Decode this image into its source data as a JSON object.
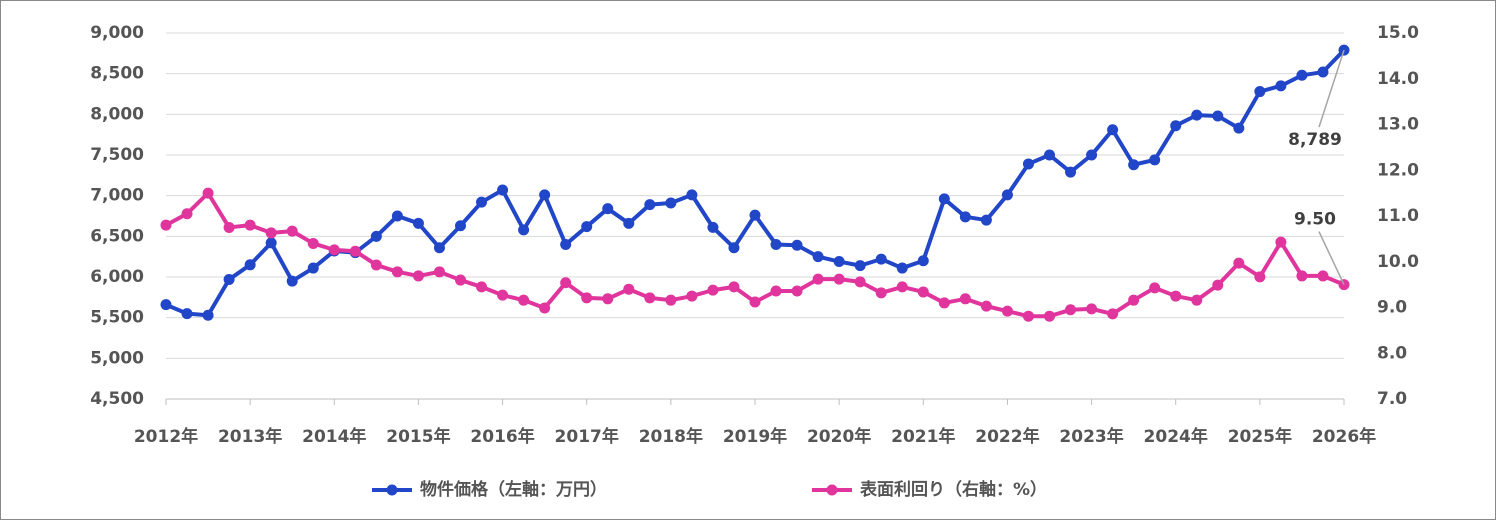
{
  "chart_data": {
    "type": "line",
    "x": [
      2012,
      2012.25,
      2012.5,
      2012.75,
      2013,
      2013.25,
      2013.5,
      2013.75,
      2014,
      2014.25,
      2014.5,
      2014.75,
      2015,
      2015.25,
      2015.5,
      2015.75,
      2016,
      2016.25,
      2016.5,
      2016.75,
      2017,
      2017.25,
      2017.5,
      2017.75,
      2018,
      2018.25,
      2018.5,
      2018.75,
      2019,
      2019.25,
      2019.5,
      2019.75,
      2020,
      2020.25,
      2020.5,
      2020.75,
      2021,
      2021.25,
      2021.5,
      2021.75,
      2022,
      2022.25,
      2022.5,
      2022.75,
      2023,
      2023.25,
      2023.5,
      2023.75,
      2024,
      2024.25,
      2024.5,
      2024.75,
      2025,
      2025.25,
      2025.5,
      2025.75,
      2026
    ],
    "xlim": [
      2012,
      2026
    ],
    "xticks": [
      {
        "value": 2012,
        "label": "2012年"
      },
      {
        "value": 2013,
        "label": "2013年"
      },
      {
        "value": 2014,
        "label": "2014年"
      },
      {
        "value": 2015,
        "label": "2015年"
      },
      {
        "value": 2016,
        "label": "2016年"
      },
      {
        "value": 2017,
        "label": "2017年"
      },
      {
        "value": 2018,
        "label": "2018年"
      },
      {
        "value": 2019,
        "label": "2019年"
      },
      {
        "value": 2020,
        "label": "2020年"
      },
      {
        "value": 2021,
        "label": "2021年"
      },
      {
        "value": 2022,
        "label": "2022年"
      },
      {
        "value": 2023,
        "label": "2023年"
      },
      {
        "value": 2024,
        "label": "2024年"
      },
      {
        "value": 2025,
        "label": "2025年"
      },
      {
        "value": 2026,
        "label": "2026年"
      }
    ],
    "ylim": [
      4500,
      9000
    ],
    "yticks": [
      {
        "value": 4500,
        "label": "4,500"
      },
      {
        "value": 5000,
        "label": "5,000"
      },
      {
        "value": 5500,
        "label": "5,500"
      },
      {
        "value": 6000,
        "label": "6,000"
      },
      {
        "value": 6500,
        "label": "6,500"
      },
      {
        "value": 7000,
        "label": "7,000"
      },
      {
        "value": 7500,
        "label": "7,500"
      },
      {
        "value": 8000,
        "label": "8,000"
      },
      {
        "value": 8500,
        "label": "8,500"
      },
      {
        "value": 9000,
        "label": "9,000"
      }
    ],
    "y2lim": [
      7,
      15
    ],
    "y2ticks": [
      {
        "value": 7,
        "label": "7.0"
      },
      {
        "value": 8,
        "label": "8.0"
      },
      {
        "value": 9,
        "label": "9.0"
      },
      {
        "value": 10,
        "label": "10.0"
      },
      {
        "value": 11,
        "label": "11.0"
      },
      {
        "value": 12,
        "label": "12.0"
      },
      {
        "value": 13,
        "label": "13.0"
      },
      {
        "value": 14,
        "label": "14.0"
      },
      {
        "value": 15,
        "label": "15.0"
      }
    ],
    "grid": true,
    "legend": "bottom",
    "series": [
      {
        "name": "物件価格（左軸：万円）",
        "color": "#2146c7",
        "values": [
          5660,
          5550,
          5530,
          5970,
          6150,
          6420,
          5950,
          6110,
          6320,
          6300,
          6500,
          6750,
          6660,
          6360,
          6630,
          6920,
          7070,
          6580,
          7010,
          6400,
          6620,
          6840,
          6660,
          6890,
          6910,
          7010,
          6610,
          6360,
          6760,
          6400,
          6390,
          6250,
          6190,
          6140,
          6220,
          6110,
          6200,
          6960,
          6740,
          6700,
          7010,
          7390,
          7500,
          7290,
          7500,
          7810,
          7380,
          7440,
          7860,
          7990,
          7980,
          7830,
          8280,
          8350,
          8480,
          8520,
          8789
        ],
        "value_labels": [
          null,
          null,
          null,
          null,
          null,
          null,
          null,
          null,
          null,
          null,
          null,
          null,
          null,
          null,
          null,
          null,
          null,
          null,
          null,
          null,
          null,
          null,
          null,
          null,
          null,
          null,
          null,
          null,
          null,
          null,
          null,
          null,
          null,
          null,
          null,
          null,
          null,
          null,
          null,
          null,
          null,
          null,
          null,
          null,
          null,
          null,
          null,
          null,
          null,
          null,
          null,
          null,
          null,
          null,
          null,
          null,
          "8,789"
        ]
      },
      {
        "name": "表面利回り（右軸：%）",
        "color": "#e0359c",
        "axis": "y2",
        "values": [
          10.8,
          11.05,
          11.5,
          10.75,
          10.8,
          10.63,
          10.67,
          10.4,
          10.26,
          10.23,
          9.93,
          9.78,
          9.69,
          9.78,
          9.6,
          9.45,
          9.27,
          9.16,
          8.99,
          9.54,
          9.21,
          9.19,
          9.4,
          9.21,
          9.16,
          9.25,
          9.38,
          9.45,
          9.12,
          9.36,
          9.36,
          9.62,
          9.62,
          9.56,
          9.32,
          9.45,
          9.34,
          9.1,
          9.19,
          9.03,
          8.92,
          8.81,
          8.81,
          8.95,
          8.97,
          8.86,
          9.16,
          9.43,
          9.25,
          9.16,
          9.49,
          9.97,
          9.67,
          10.43,
          9.69,
          9.69,
          9.5
        ],
        "value_labels": [
          null,
          null,
          null,
          null,
          null,
          null,
          null,
          null,
          null,
          null,
          null,
          null,
          null,
          null,
          null,
          null,
          null,
          null,
          null,
          null,
          null,
          null,
          null,
          null,
          null,
          null,
          null,
          null,
          null,
          null,
          null,
          null,
          null,
          null,
          null,
          null,
          null,
          null,
          null,
          null,
          null,
          null,
          null,
          null,
          null,
          null,
          null,
          null,
          null,
          null,
          null,
          null,
          null,
          null,
          null,
          null,
          "9.50"
        ]
      }
    ]
  }
}
